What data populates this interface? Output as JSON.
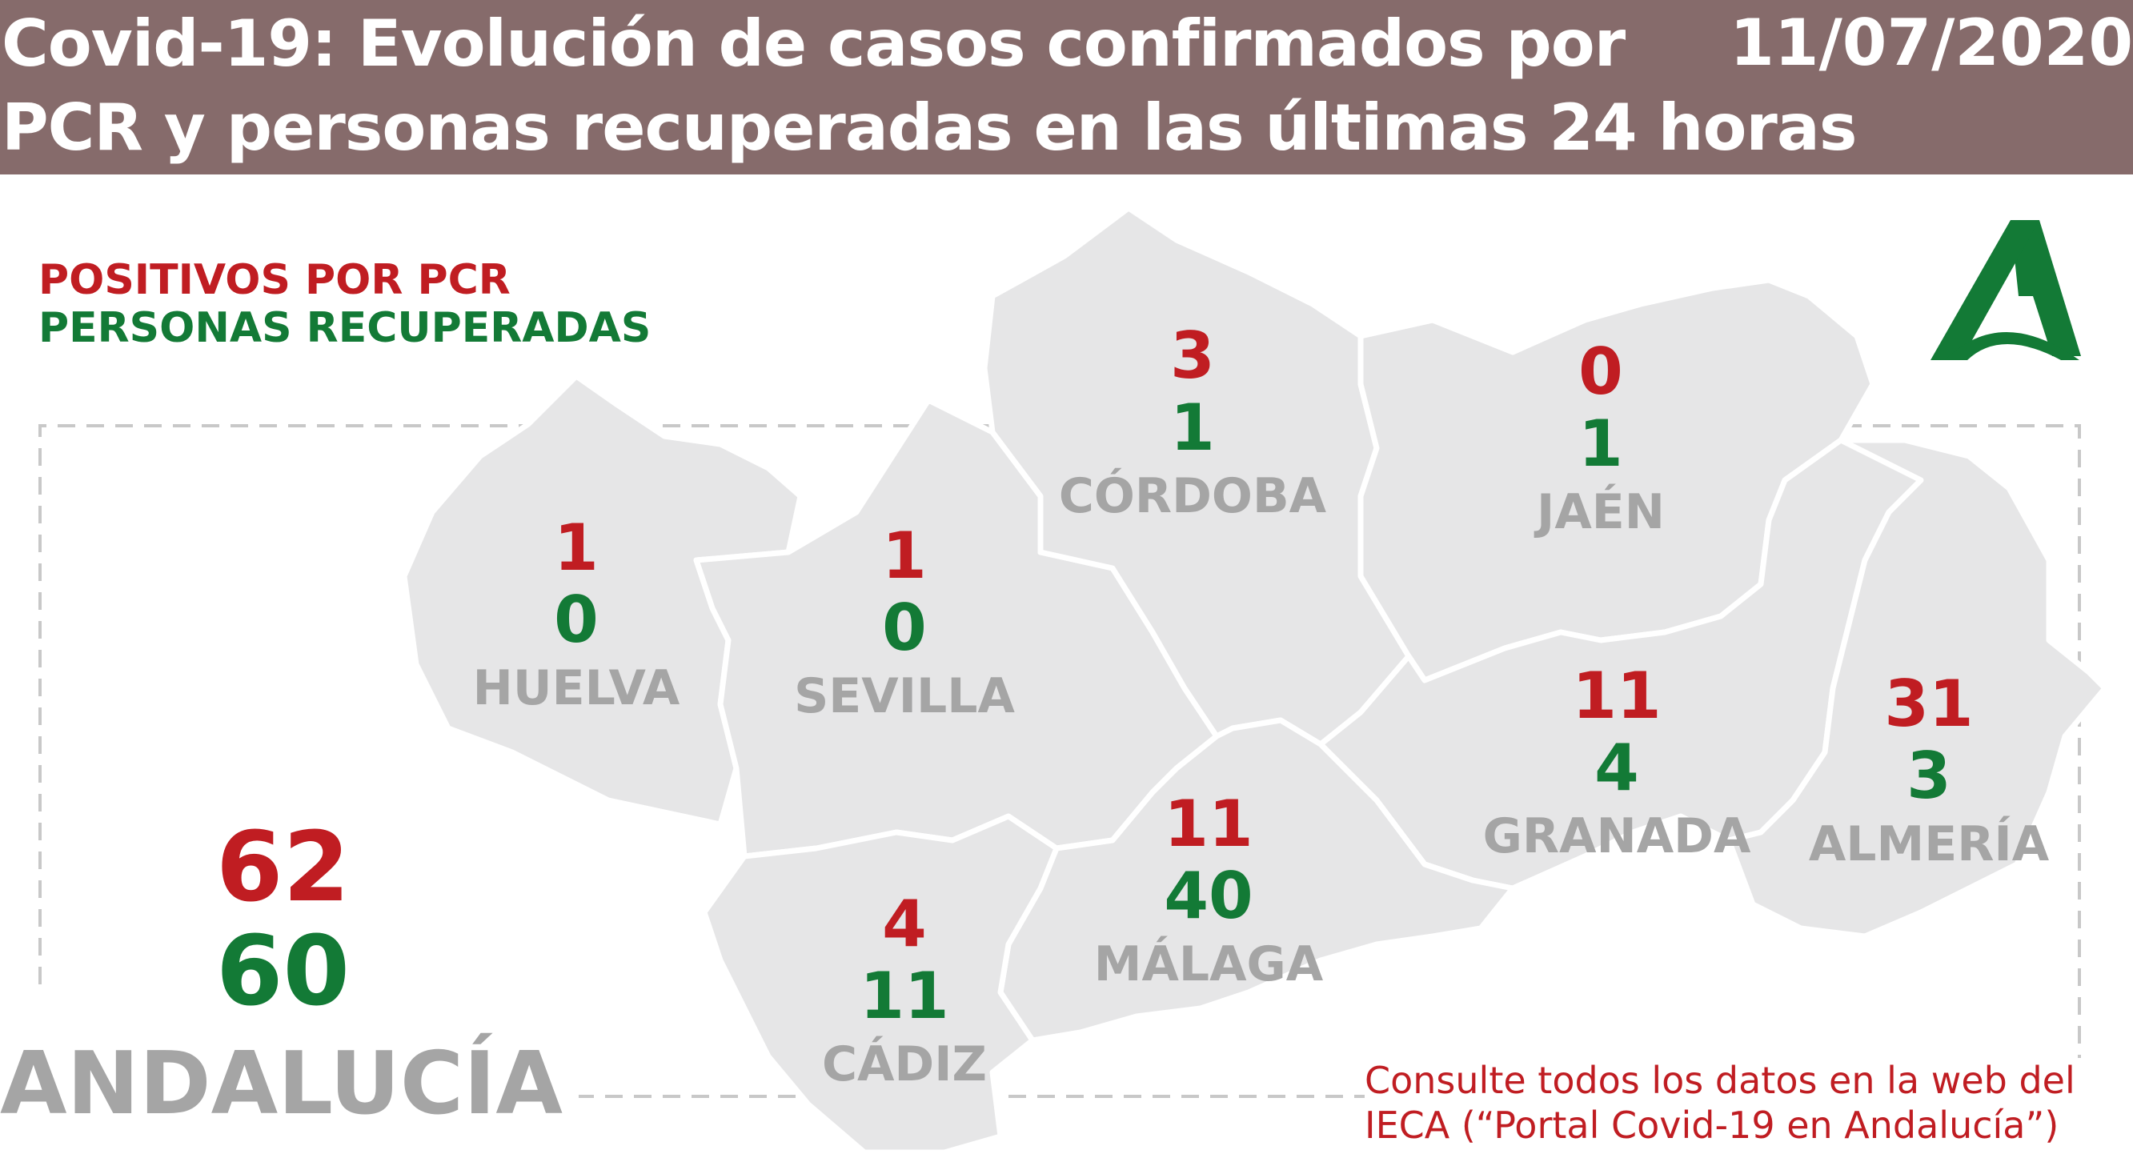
{
  "header": {
    "title_line1": "Covid-19: Evolución de casos confirmados por",
    "title_line2": "PCR y personas recuperadas en las últimas 24 horas",
    "date": "11/07/2020"
  },
  "legend": {
    "positives": "POSITIVOS POR PCR",
    "recovered": "PERSONAS RECUPERADAS"
  },
  "provinces": [
    {
      "name": "HUELVA",
      "positives": "1",
      "recovered": "0"
    },
    {
      "name": "SEVILLA",
      "positives": "1",
      "recovered": "0"
    },
    {
      "name": "CÓRDOBA",
      "positives": "3",
      "recovered": "1"
    },
    {
      "name": "JAÉN",
      "positives": "0",
      "recovered": "1"
    },
    {
      "name": "GRANADA",
      "positives": "11",
      "recovered": "4"
    },
    {
      "name": "ALMERÍA",
      "positives": "31",
      "recovered": "3"
    },
    {
      "name": "MÁLAGA",
      "positives": "11",
      "recovered": "40"
    },
    {
      "name": "CÁDIZ",
      "positives": "4",
      "recovered": "11"
    }
  ],
  "total": {
    "name": "ANDALUCÍA",
    "positives": "62",
    "recovered": "60"
  },
  "footer": {
    "line1": "Consulte todos los datos en la web del",
    "line2": "IECA (“Portal Covid-19 en Andalucía”)"
  },
  "colors": {
    "header_bg": "#866b6b",
    "positives": "#c01d22",
    "recovered": "#137a36",
    "map_fill": "#e6e6e7",
    "label_gray": "#a5a5a5",
    "logo_green": "#137a36"
  },
  "icons": {
    "logo": "junta-andalucia-logo-icon"
  }
}
